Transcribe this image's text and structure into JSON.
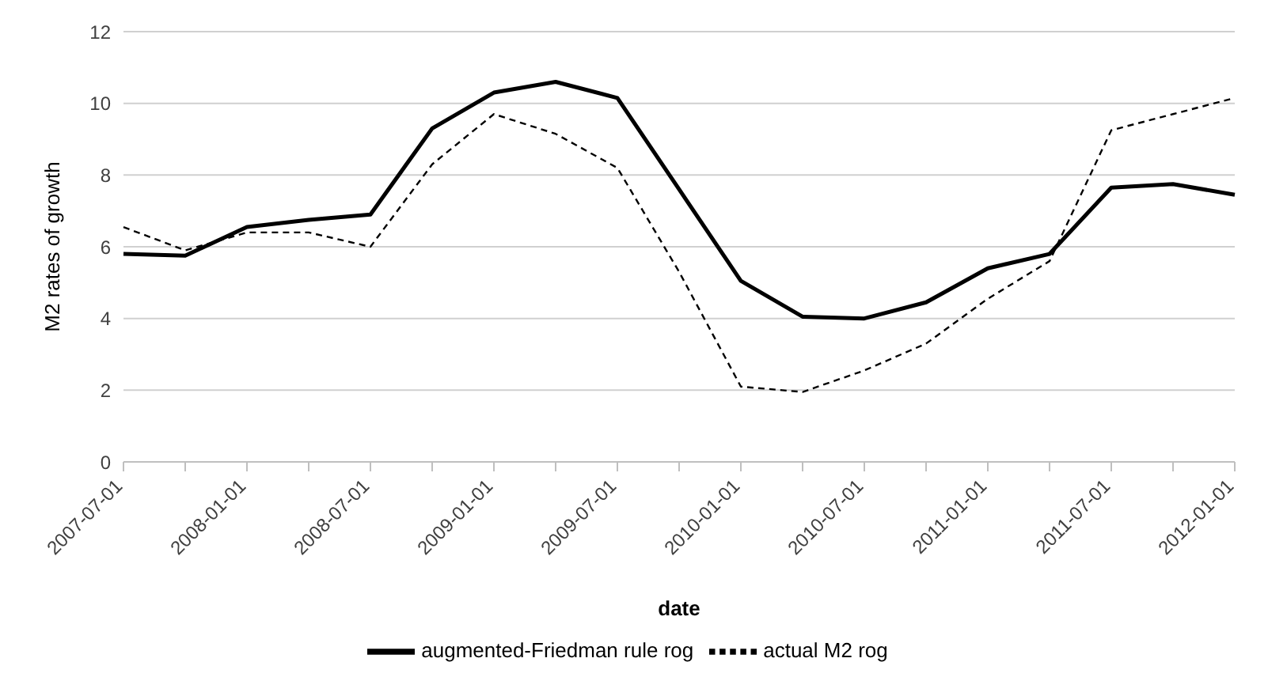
{
  "chart_data": {
    "type": "line",
    "xlabel": "date",
    "ylabel": "M2 rates of growth",
    "categories": [
      "2007-07-01",
      null,
      "2008-01-01",
      null,
      "2008-07-01",
      null,
      "2009-01-01",
      null,
      "2009-07-01",
      null,
      "2010-01-01",
      null,
      "2010-07-01",
      null,
      "2011-01-01",
      null,
      "2011-07-01",
      null,
      "2012-01-01"
    ],
    "series": [
      {
        "name": "augmented-Friedman rule rog",
        "color": "#000000",
        "line_style": "solid",
        "values": [
          5.8,
          5.75,
          6.55,
          6.75,
          6.9,
          9.3,
          10.3,
          10.6,
          10.15,
          7.6,
          5.05,
          4.05,
          4.0,
          4.45,
          5.4,
          5.8,
          7.65,
          7.75,
          7.45
        ]
      },
      {
        "name": "actual M2 rog",
        "color": "#000000",
        "line_style": "dashed",
        "values": [
          6.55,
          5.9,
          6.4,
          6.4,
          6.0,
          8.3,
          9.7,
          9.15,
          8.2,
          5.3,
          2.1,
          1.95,
          2.55,
          3.3,
          4.55,
          5.6,
          9.25,
          9.7,
          10.15
        ]
      }
    ],
    "ylim": [
      0,
      12
    ],
    "yticks": [
      0,
      2,
      4,
      6,
      8,
      10,
      12
    ],
    "grid": "y",
    "legend": "bottom",
    "marker": "none"
  }
}
